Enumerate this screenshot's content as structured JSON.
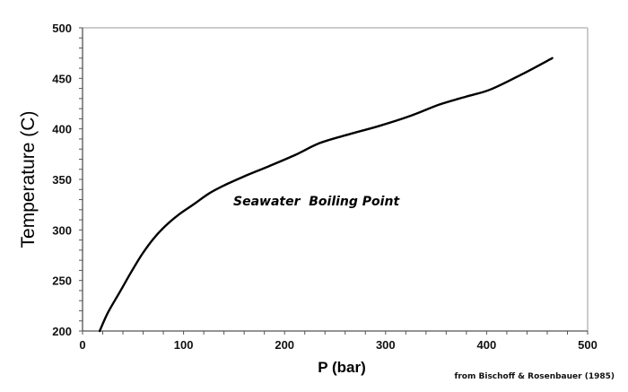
{
  "chart_data": {
    "type": "line",
    "title": "",
    "xlabel": "P (bar)",
    "ylabel": "Temperature (C)",
    "xlim": [
      0,
      500
    ],
    "ylim": [
      200,
      500
    ],
    "x_ticks": [
      0,
      100,
      200,
      300,
      400,
      500
    ],
    "y_ticks": [
      200,
      250,
      300,
      350,
      400,
      450,
      500
    ],
    "x_minor_step": 20,
    "y_minor_step": 10,
    "grid": false,
    "legend": null,
    "series": [
      {
        "name": "Seawater Boiling Point",
        "x": [
          17,
          25,
          36,
          48,
          59,
          70,
          81,
          95,
          111,
          125,
          140,
          160,
          182,
          210,
          235,
          265,
          294,
          325,
          353,
          380,
          404,
          435,
          465
        ],
        "y": [
          200,
          218,
          237,
          258,
          276,
          291,
          303,
          315,
          326,
          336,
          344,
          353,
          362,
          374,
          386,
          395,
          403,
          413,
          424,
          432,
          439,
          454,
          470
        ]
      }
    ],
    "annotations": [
      {
        "text": "Seawater  Boiling Point",
        "x": 150,
        "y": 328
      }
    ],
    "source_note": "from Bischoff & Rosenbauer (1985)"
  },
  "labels": {
    "xlabel": "P (bar)",
    "ylabel": "Temperature (C)",
    "annotation": "Seawater  Boiling Point",
    "source": "from Bischoff & Rosenbauer (1985)"
  },
  "colors": {
    "curve": "#000000",
    "axis": "#555555",
    "frame": "#bbbbbb"
  }
}
